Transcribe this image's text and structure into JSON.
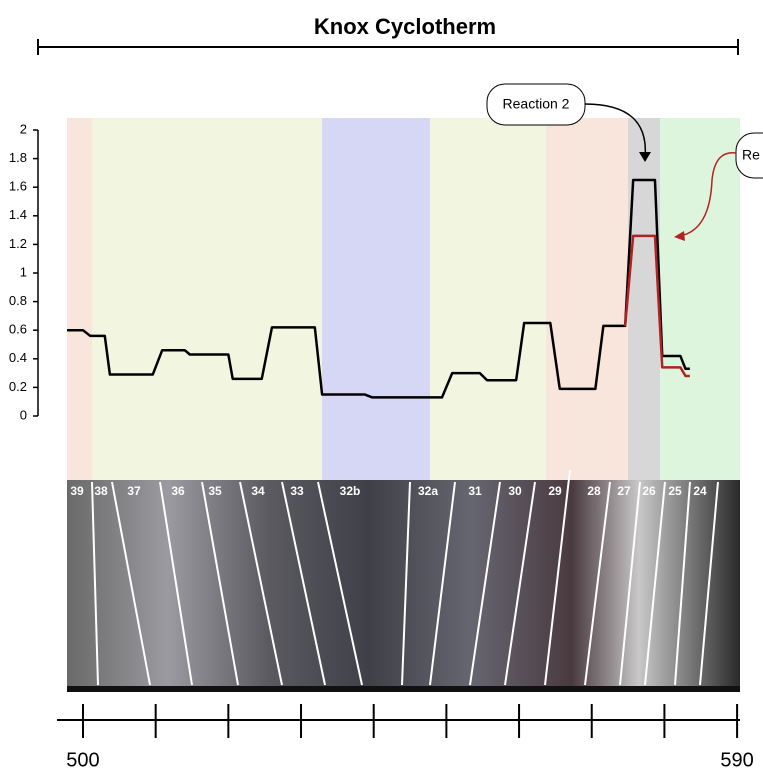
{
  "chart_data": {
    "type": "line",
    "title": "Knox Cyclotherm",
    "xlim": [
      497.8,
      590.4
    ],
    "xticks": [
      500,
      590
    ],
    "xminor_ticks": [
      510,
      520,
      530,
      540,
      550,
      560,
      570,
      580
    ],
    "ylim": [
      0,
      2
    ],
    "yticks": [
      0,
      0.2,
      0.4,
      0.6,
      0.8,
      1,
      1.2,
      1.4,
      1.6,
      1.8,
      2
    ],
    "series": [
      {
        "color": "#000000",
        "x": [
          497.8,
          500,
          501,
          503,
          503.7,
          509.6,
          510.9,
          514,
          514.7,
          520,
          520.6,
          524.6,
          526,
          531.9,
          532.9,
          538.8,
          539.8,
          549.4,
          550.8,
          554.6,
          555.6,
          559.6,
          560.7,
          564.3,
          565.6,
          570.5,
          571.6,
          574.6,
          575.7,
          578.7,
          579.7,
          582.2,
          582.9,
          583.5
        ],
        "values": [
          0.6,
          0.6,
          0.56,
          0.56,
          0.29,
          0.29,
          0.46,
          0.46,
          0.43,
          0.43,
          0.26,
          0.26,
          0.62,
          0.62,
          0.15,
          0.15,
          0.13,
          0.13,
          0.3,
          0.3,
          0.25,
          0.25,
          0.65,
          0.65,
          0.19,
          0.19,
          0.63,
          0.63,
          1.65,
          1.65,
          0.42,
          0.42,
          0.33,
          0.33
        ]
      },
      {
        "color": "#b22222",
        "x": [
          574.6,
          575.7,
          578.7,
          579.7,
          582.2,
          582.9,
          583.5
        ],
        "values": [
          0.63,
          1.26,
          1.26,
          0.34,
          0.34,
          0.28,
          0.28
        ]
      }
    ],
    "annotations": [
      "Reaction 2",
      "Re"
    ],
    "core_labels": [
      "39",
      "38",
      "37",
      "36",
      "35",
      "34",
      "33",
      "32b",
      "32a",
      "31",
      "30",
      "29",
      "28",
      "27",
      "26",
      "25",
      "24"
    ]
  }
}
